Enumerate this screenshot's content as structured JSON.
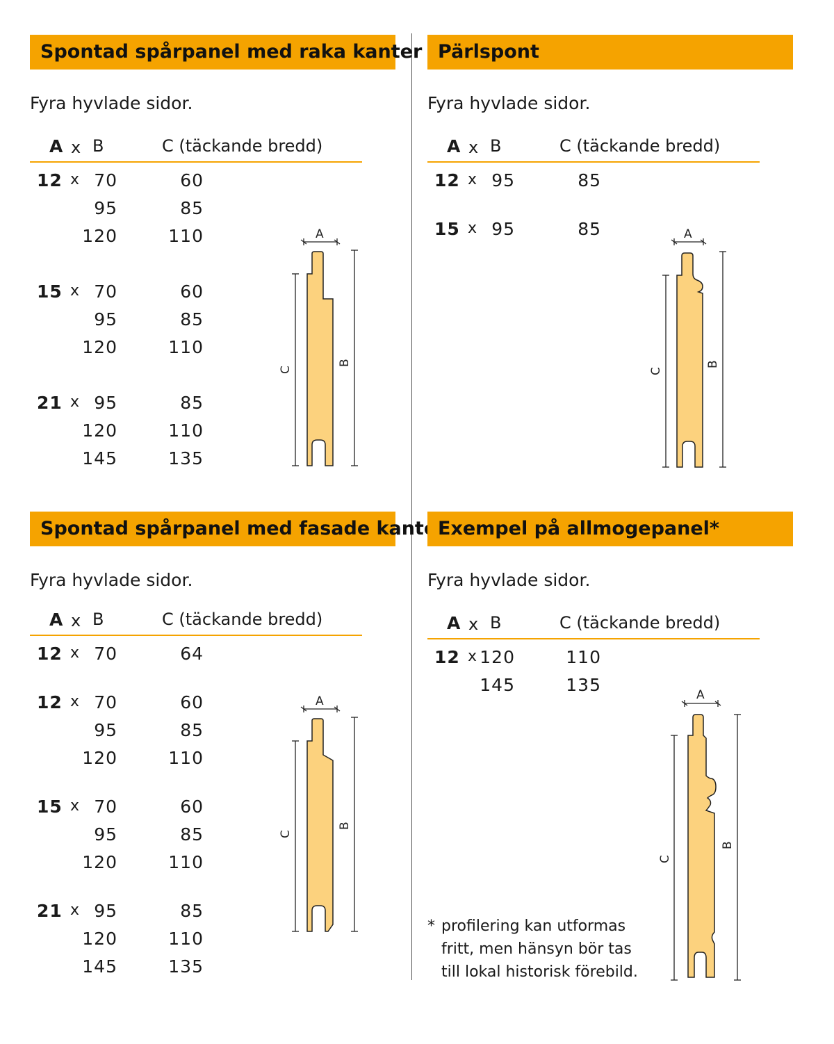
{
  "common": {
    "subtitle": "Fyra hyvlade sidor.",
    "col_a": "A",
    "col_x": "x",
    "col_b": "B",
    "col_c": "C (täckande bredd)",
    "x_sep": "x",
    "dim_a": "A",
    "dim_b": "B",
    "dim_c": "C"
  },
  "panels": [
    {
      "title": "Spontad spårpanel med raka kanter",
      "rows": [
        {
          "a": "12",
          "b": "70",
          "c": "60"
        },
        {
          "a": "",
          "b": "95",
          "c": "85"
        },
        {
          "a": "",
          "b": "120",
          "c": "110"
        },
        {
          "a": "15",
          "b": "70",
          "c": "60"
        },
        {
          "a": "",
          "b": "95",
          "c": "85"
        },
        {
          "a": "",
          "b": "120",
          "c": "110"
        },
        {
          "a": "21",
          "b": "95",
          "c": "85"
        },
        {
          "a": "",
          "b": "120",
          "c": "110"
        },
        {
          "a": "",
          "b": "145",
          "c": "135"
        }
      ]
    },
    {
      "title": "Pärlspont",
      "rows": [
        {
          "a": "12",
          "b": "95",
          "c": "85"
        },
        {
          "a": "15",
          "b": "95",
          "c": "85"
        }
      ]
    },
    {
      "title": "Spontad spårpanel med fasade kanter",
      "rows": [
        {
          "a": "12",
          "b": "70",
          "c": "64"
        },
        {
          "a": "12",
          "b": "70",
          "c": "60"
        },
        {
          "a": "",
          "b": "95",
          "c": "85"
        },
        {
          "a": "",
          "b": "120",
          "c": "110"
        },
        {
          "a": "15",
          "b": "70",
          "c": "60"
        },
        {
          "a": "",
          "b": "95",
          "c": "85"
        },
        {
          "a": "",
          "b": "120",
          "c": "110"
        },
        {
          "a": "21",
          "b": "95",
          "c": "85"
        },
        {
          "a": "",
          "b": "120",
          "c": "110"
        },
        {
          "a": "",
          "b": "145",
          "c": "135"
        }
      ]
    },
    {
      "title": "Exempel på allmogepanel*",
      "rows": [
        {
          "a": "12",
          "b": "120",
          "c": "110"
        },
        {
          "a": "",
          "b": "145",
          "c": "135"
        }
      ],
      "footnote": {
        "star": "*",
        "lines": [
          "profilering kan utformas",
          "fritt, men hänsyn bör tas",
          "till lokal historisk förebild."
        ]
      }
    }
  ],
  "colors": {
    "accent": "#f5a300",
    "wood": "#fcd27e",
    "line": "#222222"
  }
}
